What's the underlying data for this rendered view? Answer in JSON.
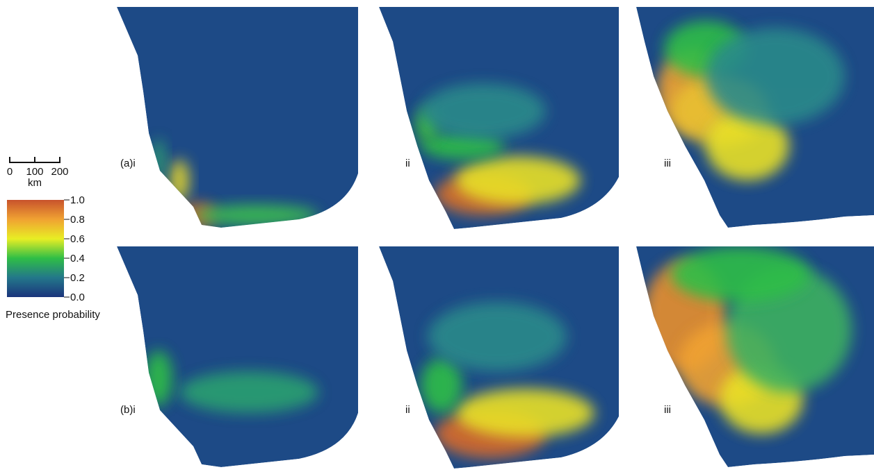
{
  "scale_bar": {
    "labels": [
      "0",
      "100",
      "200"
    ],
    "unit": "km"
  },
  "legend": {
    "title": "Presence probability",
    "ticks": [
      {
        "value": 0,
        "label": "0.0"
      },
      {
        "value": 0.2,
        "label": "0.2"
      },
      {
        "value": 0.4,
        "label": "0.4"
      },
      {
        "value": 0.6,
        "label": "0.6"
      },
      {
        "value": 0.8,
        "label": "0.8"
      },
      {
        "value": 1,
        "label": "1.0"
      }
    ]
  },
  "panels": [
    {
      "label": "(a)i"
    },
    {
      "label": "ii"
    },
    {
      "label": "iii"
    },
    {
      "label": "(b)i"
    },
    {
      "label": "ii"
    },
    {
      "label": "iii"
    }
  ]
}
